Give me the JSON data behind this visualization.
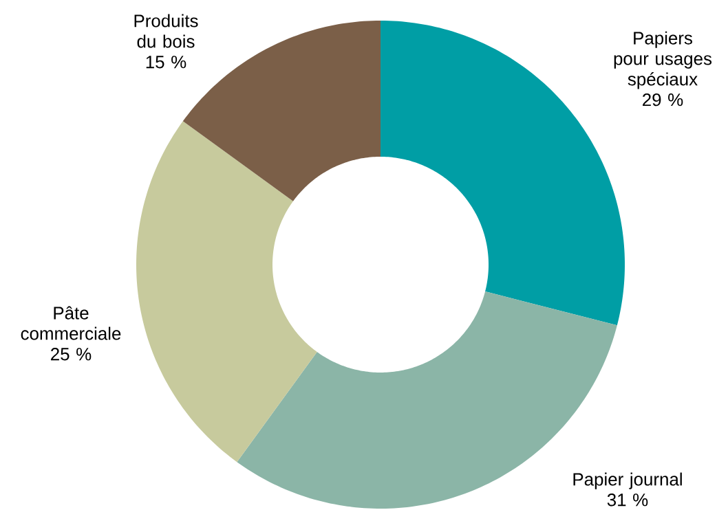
{
  "chart_data": {
    "type": "donut",
    "categories": [
      "Papiers pour usages spéciaux",
      "Papier journal",
      "Pâte commerciale",
      "Produits du bois"
    ],
    "values": [
      29,
      31,
      25,
      15
    ],
    "value_labels": [
      "29 %",
      "31 %",
      "25 %",
      "15 %"
    ],
    "colors": [
      "#009ea5",
      "#8bb5a7",
      "#c7ca9d",
      "#7b5f48"
    ]
  }
}
